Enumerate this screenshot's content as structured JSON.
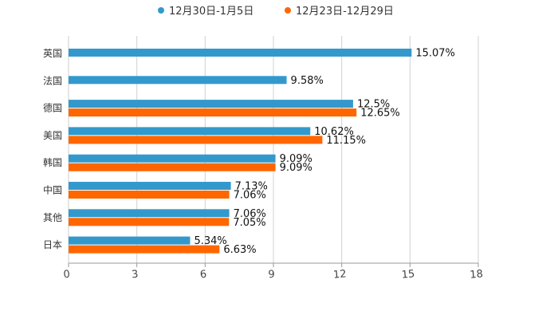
{
  "chart_data": {
    "type": "bar",
    "orientation": "horizontal",
    "title": "",
    "xlabel": "",
    "ylabel": "",
    "categories": [
      "英国",
      "法国",
      "德国",
      "美国",
      "韩国",
      "中国",
      "其他",
      "日本"
    ],
    "series": [
      {
        "name": "12月30日-1月5日",
        "color": "#3399cc",
        "values": [
          15.07,
          9.58,
          12.5,
          10.62,
          9.09,
          7.13,
          7.06,
          5.34
        ],
        "labels": [
          "15.07%",
          "9.58%",
          "12.5%",
          "10.62%",
          "9.09%",
          "7.13%",
          "7.06%",
          "5.34%"
        ]
      },
      {
        "name": "12月23日-12月29日",
        "color": "#ff6600",
        "values": [
          null,
          null,
          12.65,
          11.15,
          9.09,
          7.06,
          7.05,
          6.63
        ],
        "labels": [
          "",
          "",
          "12.65%",
          "11.15%",
          "9.09%",
          "7.06%",
          "7.05%",
          "6.63%"
        ]
      }
    ],
    "xlim": [
      0,
      18
    ],
    "xticks": [
      0,
      3,
      6,
      9,
      12,
      15,
      18
    ],
    "xtick_labels": [
      "0",
      "3",
      "6",
      "9",
      "12",
      "15",
      "18"
    ],
    "grid": true,
    "legend_position": "top-center"
  }
}
